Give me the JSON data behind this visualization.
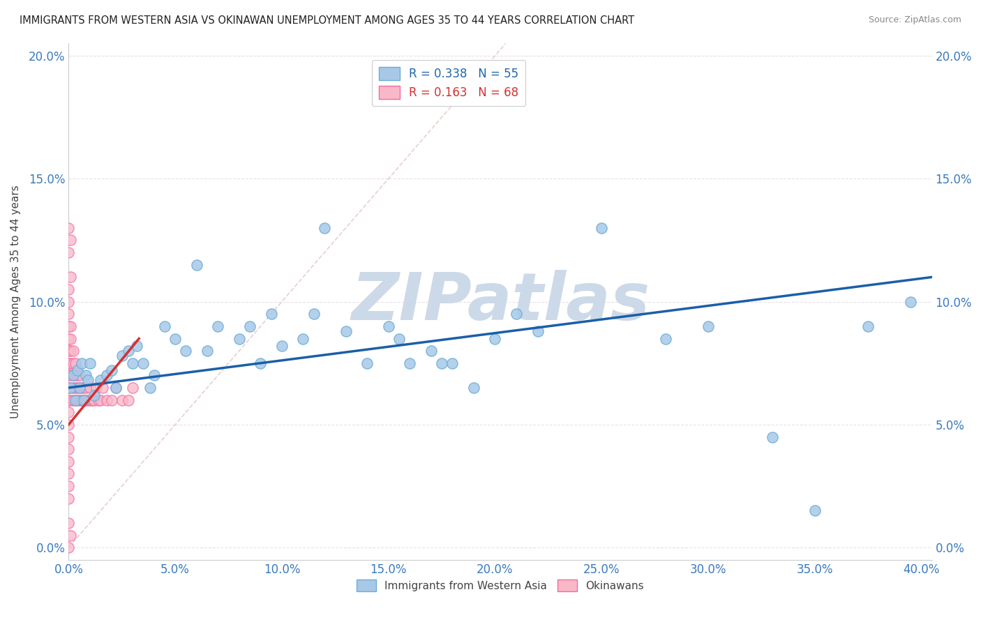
{
  "title": "IMMIGRANTS FROM WESTERN ASIA VS OKINAWAN UNEMPLOYMENT AMONG AGES 35 TO 44 YEARS CORRELATION CHART",
  "source": "Source: ZipAtlas.com",
  "xlim": [
    0,
    0.405
  ],
  "ylim": [
    -0.005,
    0.205
  ],
  "R1": 0.338,
  "N1": 55,
  "R2": 0.163,
  "N2": 68,
  "scatter1_color": "#a8c8e8",
  "scatter1_edge": "#6baed6",
  "scatter2_color": "#f9b8c8",
  "scatter2_edge": "#f768a1",
  "trend1_color": "#1a5fa8",
  "trend2_color": "#d63030",
  "watermark": "ZIPatlas",
  "watermark_color": "#ccd9e8",
  "legend_label1": "Immigrants from Western Asia",
  "legend_label2": "Okinawans",
  "tick_color": "#3a7abf",
  "ylabel": "Unemployment Among Ages 35 to 44 years",
  "blue_x": [
    0.001,
    0.002,
    0.003,
    0.004,
    0.005,
    0.006,
    0.007,
    0.008,
    0.009,
    0.01,
    0.012,
    0.015,
    0.018,
    0.02,
    0.022,
    0.025,
    0.028,
    0.03,
    0.032,
    0.035,
    0.038,
    0.04,
    0.045,
    0.05,
    0.055,
    0.06,
    0.065,
    0.07,
    0.08,
    0.085,
    0.09,
    0.095,
    0.1,
    0.11,
    0.115,
    0.12,
    0.13,
    0.14,
    0.15,
    0.155,
    0.16,
    0.17,
    0.175,
    0.18,
    0.19,
    0.2,
    0.21,
    0.22,
    0.25,
    0.28,
    0.3,
    0.33,
    0.35,
    0.375,
    0.395
  ],
  "blue_y": [
    0.065,
    0.07,
    0.06,
    0.072,
    0.065,
    0.075,
    0.06,
    0.07,
    0.068,
    0.075,
    0.062,
    0.068,
    0.07,
    0.072,
    0.065,
    0.078,
    0.08,
    0.075,
    0.082,
    0.075,
    0.065,
    0.07,
    0.09,
    0.085,
    0.08,
    0.115,
    0.08,
    0.09,
    0.085,
    0.09,
    0.075,
    0.095,
    0.082,
    0.085,
    0.095,
    0.13,
    0.088,
    0.075,
    0.09,
    0.085,
    0.075,
    0.08,
    0.075,
    0.075,
    0.065,
    0.085,
    0.095,
    0.088,
    0.13,
    0.085,
    0.09,
    0.045,
    0.015,
    0.09,
    0.1
  ],
  "pink_x": [
    0.0,
    0.0,
    0.0,
    0.0,
    0.0,
    0.0,
    0.0,
    0.0,
    0.0,
    0.0,
    0.0,
    0.0,
    0.0,
    0.0,
    0.0,
    0.0,
    0.001,
    0.001,
    0.001,
    0.001,
    0.001,
    0.001,
    0.001,
    0.002,
    0.002,
    0.002,
    0.002,
    0.002,
    0.003,
    0.003,
    0.003,
    0.003,
    0.004,
    0.004,
    0.004,
    0.005,
    0.005,
    0.005,
    0.006,
    0.006,
    0.007,
    0.007,
    0.008,
    0.008,
    0.009,
    0.01,
    0.01,
    0.011,
    0.012,
    0.013,
    0.014,
    0.015,
    0.016,
    0.018,
    0.02,
    0.022,
    0.025,
    0.028,
    0.03,
    0.0,
    0.0,
    0.001,
    0.0,
    0.001,
    0.0,
    0.0,
    0.001,
    0.0
  ],
  "pink_y": [
    0.06,
    0.065,
    0.07,
    0.075,
    0.08,
    0.085,
    0.09,
    0.095,
    0.1,
    0.05,
    0.055,
    0.045,
    0.04,
    0.035,
    0.03,
    0.025,
    0.06,
    0.065,
    0.07,
    0.075,
    0.08,
    0.085,
    0.09,
    0.06,
    0.065,
    0.07,
    0.075,
    0.08,
    0.06,
    0.065,
    0.07,
    0.075,
    0.06,
    0.065,
    0.07,
    0.06,
    0.065,
    0.07,
    0.06,
    0.065,
    0.06,
    0.065,
    0.06,
    0.065,
    0.06,
    0.06,
    0.065,
    0.06,
    0.06,
    0.065,
    0.06,
    0.06,
    0.065,
    0.06,
    0.06,
    0.065,
    0.06,
    0.06,
    0.065,
    0.12,
    0.13,
    0.125,
    0.105,
    0.11,
    0.0,
    0.01,
    0.005,
    0.02
  ]
}
